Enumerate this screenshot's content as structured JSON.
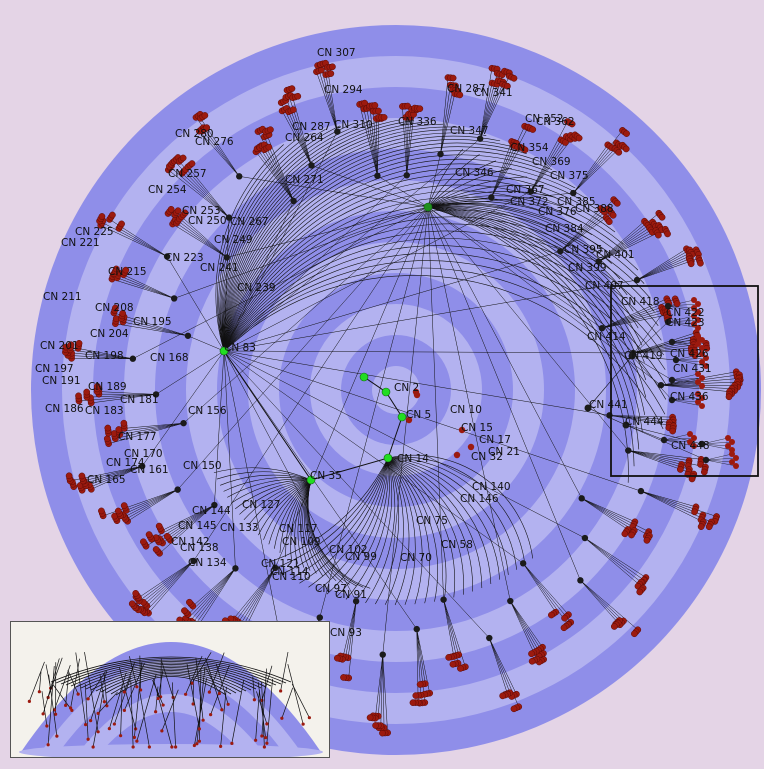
{
  "colors": {
    "background": "#e4d4e6",
    "ring_light": "#b3b2f0",
    "ring_dark": "#8f8ee9",
    "focus_green": "#22dd22",
    "leaf_red": "#9c1a0f",
    "node_dark": "#1b1b1b",
    "inset_bg": "#f4f2ec"
  },
  "icons": {
    "node": "circle",
    "focus_box": "rectangle-outline",
    "inset_view": "hemisphere-projection"
  },
  "hub_labels": [
    "CN 2",
    "CN 5",
    "CN 10",
    "CN 14",
    "CN 35",
    "CN 83"
  ],
  "labels": [
    "CN 307",
    "CN 294",
    "CN 287",
    "CN 341",
    "CN 352",
    "CN 362",
    "CN 280",
    "CN 276",
    "CN 264",
    "CN 287",
    "CN 310",
    "CN 336",
    "CN 347",
    "CN 354",
    "CN 369",
    "CN 375",
    "CN 257",
    "CN 254",
    "CN 271",
    "CN 346",
    "CN 367",
    "CN 372",
    "CN 376",
    "CN 385",
    "CN 388",
    "CN 253",
    "CN 250",
    "CN 267",
    "CN 249",
    "CN 384",
    "CN 225",
    "CN 221",
    "CN 223",
    "CN 241",
    "CN 395",
    "CN 399",
    "CN 401",
    "CN 215",
    "CN 239",
    "CN 407",
    "CN 211",
    "CN 208",
    "CN 204",
    "CN 195",
    "CN 201",
    "CN 198",
    "CN 197",
    "CN 191",
    "CN 189",
    "CN 186",
    "CN 183",
    "CN 181",
    "CN 168",
    "CN 156",
    "CN 177",
    "CN 170",
    "CN 174",
    "CN 165",
    "CN 161",
    "CN 150",
    "CN 15",
    "CN 17",
    "CN 21",
    "CN 32",
    "CN 140",
    "CN 146",
    "CN 75",
    "CN 58",
    "CN 70",
    "CN 144",
    "CN 127",
    "CN 133",
    "CN 145",
    "CN 142",
    "CN 138",
    "CN 134",
    "CN 117",
    "CN 109",
    "CN 102",
    "CN 99",
    "CN 121",
    "CN 114",
    "CN 110",
    "CN 97",
    "CN 91",
    "CN 93",
    "CN 414",
    "CN 418",
    "CN 441",
    "CN 419",
    "CN 422",
    "CN 423",
    "CN 426",
    "CN 431",
    "CN 436",
    "CN 444",
    "CN 448"
  ]
}
